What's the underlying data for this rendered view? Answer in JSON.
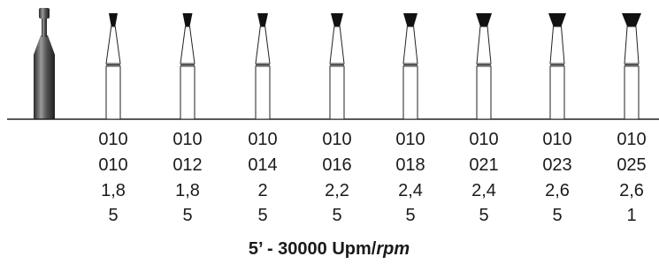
{
  "columns": [
    [
      "010",
      "010",
      "1,8",
      "5"
    ],
    [
      "010",
      "012",
      "1,8",
      "5"
    ],
    [
      "010",
      "014",
      "2",
      "5"
    ],
    [
      "010",
      "016",
      "2,2",
      "5"
    ],
    [
      "010",
      "018",
      "2,4",
      "5"
    ],
    [
      "010",
      "021",
      "2,4",
      "5"
    ],
    [
      "010",
      "023",
      "2,6",
      "5"
    ],
    [
      "010",
      "025",
      "2,6",
      "1"
    ]
  ],
  "footer": {
    "text": "5’ - 30000 Upm/",
    "italic": "rpm"
  }
}
